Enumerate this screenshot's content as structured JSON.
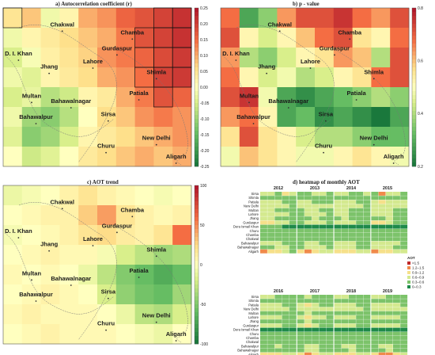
{
  "panels": {
    "a": {
      "title": "a) Autocorrelation coefficient (r)"
    },
    "b": {
      "title": "b) p - value"
    },
    "c": {
      "title": "c) AOT trend"
    },
    "d": {
      "title": "d) heatmap of monthly AOT"
    }
  },
  "cities": [
    {
      "name": "Chakwal",
      "x": 72.9,
      "y": 32.9
    },
    {
      "name": "Chamba",
      "x": 76.1,
      "y": 32.6
    },
    {
      "name": "D. I. Khan",
      "x": 70.9,
      "y": 31.8
    },
    {
      "name": "Gurdaspur",
      "x": 75.4,
      "y": 32.0
    },
    {
      "name": "Jhang",
      "x": 72.3,
      "y": 31.3
    },
    {
      "name": "Lahore",
      "x": 74.3,
      "y": 31.5
    },
    {
      "name": "Shimla",
      "x": 77.2,
      "y": 31.1
    },
    {
      "name": "Patiala",
      "x": 76.4,
      "y": 30.3
    },
    {
      "name": "Multan",
      "x": 71.5,
      "y": 30.2
    },
    {
      "name": "Bahawalnagar",
      "x": 73.3,
      "y": 30.0
    },
    {
      "name": "Sirsa",
      "x": 75.0,
      "y": 29.5
    },
    {
      "name": "Bahawalpur",
      "x": 71.7,
      "y": 29.4
    },
    {
      "name": "New Delhi",
      "x": 77.2,
      "y": 28.6
    },
    {
      "name": "Churu",
      "x": 74.9,
      "y": 28.3
    },
    {
      "name": "Aligarh",
      "x": 78.1,
      "y": 27.9
    }
  ],
  "colorbars": {
    "a": [
      "0.25",
      "0.20",
      "0.15",
      "0.10",
      "0.05",
      "0.00",
      "-0.05",
      "-0.10",
      "-0.15",
      "-0.20",
      "-0.25"
    ],
    "b": [
      "0.8",
      "0.6",
      "0.4",
      "0.2"
    ],
    "c": [
      "100",
      "50",
      "0",
      "-50",
      "-100"
    ]
  },
  "chart_data": [
    {
      "type": "heatmap",
      "title": "a) Autocorrelation coefficient (r)",
      "colorbar": {
        "min": -0.25,
        "max": 0.25
      },
      "xlim": [
        70.2,
        78.8
      ],
      "ylim": [
        27.6,
        33.6
      ],
      "grid": {
        "cols": 10,
        "rows": 8
      },
      "values": [
        [
          0.05,
          0.08,
          -0.02,
          0.02,
          0.1,
          0.12,
          0.16,
          0.18,
          0.2,
          0.22
        ],
        [
          -0.02,
          0.02,
          0.04,
          0.06,
          0.08,
          0.1,
          0.14,
          0.18,
          0.2,
          0.22
        ],
        [
          -0.05,
          -0.01,
          0.03,
          0.05,
          0.07,
          0.12,
          0.14,
          0.16,
          0.19,
          0.21
        ],
        [
          -0.02,
          -0.04,
          0.02,
          0.04,
          0.06,
          0.1,
          0.12,
          0.15,
          0.2,
          0.21
        ],
        [
          -0.05,
          -0.03,
          -0.08,
          -0.06,
          0.02,
          0.04,
          0.1,
          0.14,
          0.18,
          0.16
        ],
        [
          -0.02,
          -0.1,
          -0.12,
          -0.08,
          0.0,
          0.06,
          0.08,
          0.12,
          0.14,
          0.12
        ],
        [
          -0.04,
          -0.12,
          -0.1,
          -0.05,
          0.02,
          0.04,
          0.06,
          0.08,
          0.1,
          0.12
        ],
        [
          0.0,
          -0.06,
          -0.04,
          0.0,
          0.04,
          0.06,
          0.08,
          0.1,
          0.08,
          0.1
        ]
      ]
    },
    {
      "type": "heatmap",
      "title": "b) p - value",
      "colorbar": {
        "min": 0.15,
        "max": 0.9
      },
      "xlim": [
        70.2,
        78.8
      ],
      "ylim": [
        27.6,
        33.6
      ],
      "grid": {
        "cols": 10,
        "rows": 8
      },
      "values": [
        [
          0.75,
          0.25,
          0.35,
          0.7,
          0.8,
          0.8,
          0.85,
          0.75,
          0.7,
          0.8
        ],
        [
          0.8,
          0.55,
          0.45,
          0.55,
          0.65,
          0.75,
          0.8,
          0.6,
          0.55,
          0.75
        ],
        [
          0.7,
          0.4,
          0.35,
          0.45,
          0.55,
          0.6,
          0.7,
          0.65,
          0.4,
          0.8
        ],
        [
          0.75,
          0.55,
          0.45,
          0.5,
          0.4,
          0.45,
          0.55,
          0.6,
          0.75,
          0.8
        ],
        [
          0.8,
          0.85,
          0.5,
          0.25,
          0.2,
          0.25,
          0.3,
          0.35,
          0.4,
          0.35
        ],
        [
          0.7,
          0.75,
          0.55,
          0.25,
          0.3,
          0.2,
          0.25,
          0.2,
          0.15,
          0.25
        ],
        [
          0.6,
          0.8,
          0.6,
          0.55,
          0.45,
          0.4,
          0.4,
          0.35,
          0.3,
          0.3
        ],
        [
          0.5,
          0.65,
          0.6,
          0.55,
          0.5,
          0.5,
          0.55,
          0.6,
          0.55,
          0.5
        ]
      ]
    },
    {
      "type": "heatmap",
      "title": "c) AOT trend",
      "colorbar": {
        "min": -100,
        "max": 100
      },
      "xlim": [
        70.2,
        78.8
      ],
      "ylim": [
        27.6,
        33.6
      ],
      "grid": {
        "cols": 10,
        "rows": 8
      },
      "values": [
        [
          -10,
          -5,
          0,
          10,
          20,
          10,
          5,
          0,
          -5,
          0
        ],
        [
          0,
          5,
          10,
          10,
          30,
          45,
          20,
          10,
          5,
          10
        ],
        [
          -5,
          0,
          5,
          10,
          20,
          25,
          15,
          10,
          20,
          60
        ],
        [
          0,
          5,
          10,
          5,
          5,
          -5,
          -20,
          -30,
          -40,
          -35
        ],
        [
          5,
          0,
          5,
          0,
          -10,
          -30,
          -50,
          -60,
          -70,
          -60
        ],
        [
          0,
          5,
          10,
          5,
          0,
          -20,
          -45,
          -55,
          -60,
          -40
        ],
        [
          5,
          10,
          5,
          5,
          5,
          0,
          -10,
          -30,
          -35,
          -20
        ],
        [
          0,
          5,
          10,
          5,
          5,
          5,
          0,
          -5,
          -10,
          0
        ]
      ]
    },
    {
      "type": "heatmap",
      "title": "d) heatmap of monthly AOT",
      "years_top": [
        "2012",
        "2013",
        "2014",
        "2015"
      ],
      "years_bottom": [
        "2016",
        "2017",
        "2018",
        "2019"
      ],
      "months": [
        "Oct",
        "Nov",
        "Dec",
        "Jan",
        "Feb"
      ],
      "rows": [
        "Sirsa",
        "Shimla",
        "Patiala",
        "New Delhi",
        "Multan",
        "Lahore",
        "Jhang",
        "Gurdaspur",
        "Dera Ismail Khan",
        "Churu",
        "Chamba",
        "Chakwal",
        "Bahawalpur",
        "Bahawalnagar",
        "Aligarh"
      ],
      "legend": {
        "title": "AOT",
        "classes": [
          ">1.5",
          "1.2–1.5",
          "0.9–1.2",
          "0.6–0.9",
          "0.3–0.6",
          "0–0.3"
        ],
        "colors": [
          "#c0282a",
          "#f08a4b",
          "#f6e08a",
          "#d4e98f",
          "#7cc36a",
          "#1e8a4a"
        ]
      },
      "values_top": [
        [
          3,
          3,
          4,
          2,
          3,
          4,
          4,
          3,
          3,
          4,
          3,
          3,
          4,
          4,
          3,
          4,
          1,
          3,
          3,
          4
        ],
        [
          4,
          4,
          4,
          4,
          4,
          4,
          4,
          4,
          4,
          4,
          4,
          4,
          4,
          4,
          4,
          4,
          4,
          4,
          4,
          4
        ],
        [
          3,
          3,
          3,
          4,
          4,
          3,
          3,
          4,
          4,
          4,
          3,
          3,
          3,
          4,
          4,
          3,
          2,
          3,
          3,
          3
        ],
        [
          3,
          3,
          3,
          3,
          4,
          3,
          3,
          3,
          3,
          3,
          3,
          3,
          3,
          3,
          4,
          3,
          3,
          3,
          3,
          3
        ],
        [
          3,
          3,
          4,
          4,
          4,
          4,
          3,
          3,
          4,
          4,
          3,
          3,
          4,
          4,
          4,
          3,
          3,
          3,
          4,
          4
        ],
        [
          3,
          3,
          3,
          3,
          4,
          4,
          3,
          3,
          3,
          4,
          3,
          3,
          4,
          4,
          4,
          3,
          3,
          3,
          4,
          4
        ],
        [
          3,
          3,
          4,
          4,
          4,
          4,
          4,
          3,
          4,
          4,
          4,
          3,
          4,
          4,
          4,
          4,
          4,
          3,
          4,
          4
        ],
        [
          2,
          2,
          3,
          3,
          4,
          4,
          3,
          3,
          3,
          4,
          3,
          3,
          3,
          4,
          4,
          2,
          2,
          3,
          4,
          4
        ],
        [
          4,
          4,
          4,
          5,
          5,
          5,
          5,
          5,
          5,
          5,
          5,
          5,
          5,
          5,
          5,
          5,
          5,
          5,
          5,
          5
        ],
        [
          4,
          4,
          4,
          4,
          4,
          4,
          4,
          4,
          4,
          4,
          4,
          4,
          4,
          4,
          4,
          4,
          4,
          4,
          4,
          4
        ],
        [
          4,
          4,
          4,
          4,
          4,
          4,
          4,
          4,
          4,
          4,
          4,
          4,
          4,
          4,
          4,
          4,
          4,
          4,
          4,
          4
        ],
        [
          4,
          4,
          4,
          4,
          4,
          4,
          4,
          4,
          4,
          4,
          4,
          4,
          4,
          4,
          4,
          4,
          4,
          4,
          4,
          4
        ],
        [
          3,
          3,
          3,
          4,
          4,
          4,
          3,
          3,
          4,
          4,
          3,
          3,
          3,
          4,
          4,
          3,
          3,
          3,
          3,
          4
        ],
        [
          4,
          4,
          3,
          3,
          4,
          4,
          3,
          3,
          3,
          4,
          3,
          3,
          3,
          4,
          4,
          3,
          3,
          3,
          4,
          4
        ],
        [
          1,
          2,
          2,
          3,
          4,
          2,
          1,
          2,
          3,
          3,
          2,
          2,
          2,
          3,
          3,
          1,
          2,
          2,
          3,
          3
        ]
      ],
      "values_bottom": [
        [
          3,
          3,
          4,
          4,
          4,
          4,
          3,
          4,
          4,
          4,
          3,
          3,
          4,
          4,
          4,
          3,
          3,
          4,
          4,
          4
        ],
        [
          4,
          4,
          4,
          4,
          4,
          4,
          4,
          4,
          4,
          4,
          4,
          4,
          4,
          4,
          4,
          4,
          4,
          4,
          4,
          4
        ],
        [
          3,
          3,
          3,
          4,
          4,
          3,
          2,
          3,
          4,
          4,
          3,
          3,
          3,
          4,
          4,
          3,
          3,
          3,
          3,
          4
        ],
        [
          3,
          3,
          3,
          3,
          4,
          3,
          3,
          3,
          3,
          3,
          3,
          3,
          3,
          3,
          4,
          3,
          3,
          3,
          3,
          3
        ],
        [
          4,
          4,
          4,
          4,
          4,
          4,
          3,
          4,
          4,
          4,
          4,
          4,
          4,
          4,
          4,
          4,
          4,
          4,
          4,
          4
        ],
        [
          3,
          3,
          3,
          4,
          4,
          3,
          2,
          3,
          3,
          4,
          3,
          3,
          3,
          4,
          4,
          3,
          3,
          3,
          3,
          4
        ],
        [
          4,
          4,
          4,
          4,
          4,
          4,
          3,
          4,
          4,
          4,
          4,
          4,
          4,
          4,
          4,
          4,
          4,
          4,
          4,
          4
        ],
        [
          3,
          3,
          3,
          4,
          4,
          3,
          2,
          3,
          4,
          4,
          3,
          3,
          3,
          4,
          4,
          3,
          3,
          3,
          3,
          4
        ],
        [
          5,
          5,
          5,
          5,
          5,
          5,
          5,
          5,
          5,
          5,
          5,
          5,
          5,
          5,
          5,
          5,
          5,
          5,
          5,
          5
        ],
        [
          4,
          4,
          4,
          4,
          4,
          4,
          4,
          4,
          4,
          4,
          4,
          4,
          4,
          4,
          4,
          4,
          4,
          4,
          4,
          4
        ],
        [
          4,
          4,
          4,
          4,
          4,
          4,
          4,
          4,
          4,
          4,
          4,
          4,
          4,
          4,
          4,
          4,
          4,
          4,
          4,
          4
        ],
        [
          4,
          4,
          4,
          4,
          4,
          4,
          4,
          4,
          4,
          4,
          4,
          4,
          4,
          4,
          4,
          4,
          4,
          4,
          4,
          4
        ],
        [
          4,
          4,
          3,
          4,
          4,
          4,
          3,
          3,
          4,
          4,
          4,
          3,
          3,
          4,
          4,
          4,
          3,
          3,
          4,
          4
        ],
        [
          4,
          4,
          4,
          4,
          4,
          4,
          3,
          3,
          4,
          4,
          4,
          4,
          3,
          4,
          4,
          4,
          4,
          3,
          4,
          4
        ],
        [
          2,
          2,
          2,
          3,
          3,
          2,
          1,
          2,
          3,
          3,
          2,
          2,
          2,
          3,
          3,
          2,
          1,
          1,
          2,
          3
        ]
      ]
    }
  ]
}
